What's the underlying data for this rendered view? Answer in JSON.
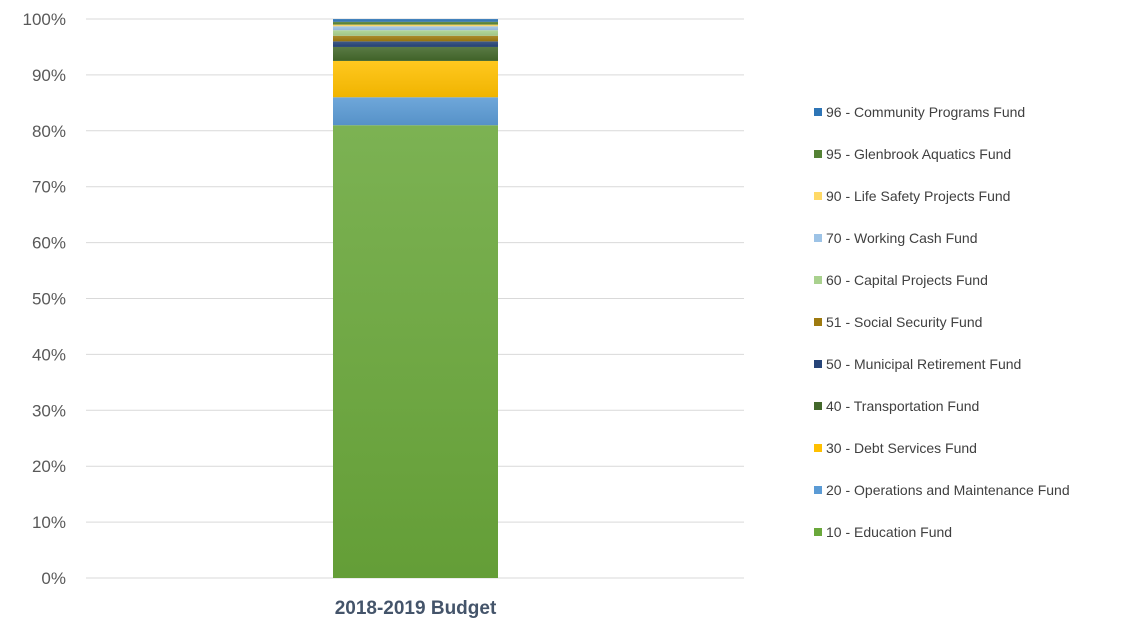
{
  "chart_data": {
    "type": "bar",
    "stacked": true,
    "percent": true,
    "categories": [
      "2018-2019 Budget"
    ],
    "ylim": [
      0,
      100
    ],
    "yticks": [
      "0%",
      "10%",
      "20%",
      "30%",
      "40%",
      "50%",
      "60%",
      "70%",
      "80%",
      "90%",
      "100%"
    ],
    "grid": true,
    "legend_position": "right",
    "series": [
      {
        "name": "10 - Education Fund",
        "values": [
          81.0
        ],
        "color": "#6aa83b"
      },
      {
        "name": "20 - Operations and Maintenance Fund",
        "values": [
          5.0
        ],
        "color": "#5b9bd5"
      },
      {
        "name": "30 - Debt Services Fund",
        "values": [
          6.5
        ],
        "color": "#ffc000"
      },
      {
        "name": "40 - Transportation Fund",
        "values": [
          2.5
        ],
        "color": "#43682b"
      },
      {
        "name": "50 - Municipal Retirement Fund",
        "values": [
          1.0
        ],
        "color": "#264478"
      },
      {
        "name": "51 - Social Security Fund",
        "values": [
          1.0
        ],
        "color": "#9e7a0f"
      },
      {
        "name": "60 - Capital Projects Fund",
        "values": [
          1.0
        ],
        "color": "#a9d18e"
      },
      {
        "name": "70 - Working Cash Fund",
        "values": [
          0.7
        ],
        "color": "#9dc3e6"
      },
      {
        "name": "90 - Life Safety Projects Fund",
        "values": [
          0.3
        ],
        "color": "#ffd966"
      },
      {
        "name": "95 - Glenbrook Aquatics Fund",
        "values": [
          0.5
        ],
        "color": "#548235"
      },
      {
        "name": "96 - Community Programs Fund",
        "values": [
          0.5
        ],
        "color": "#2e75b6"
      }
    ]
  }
}
